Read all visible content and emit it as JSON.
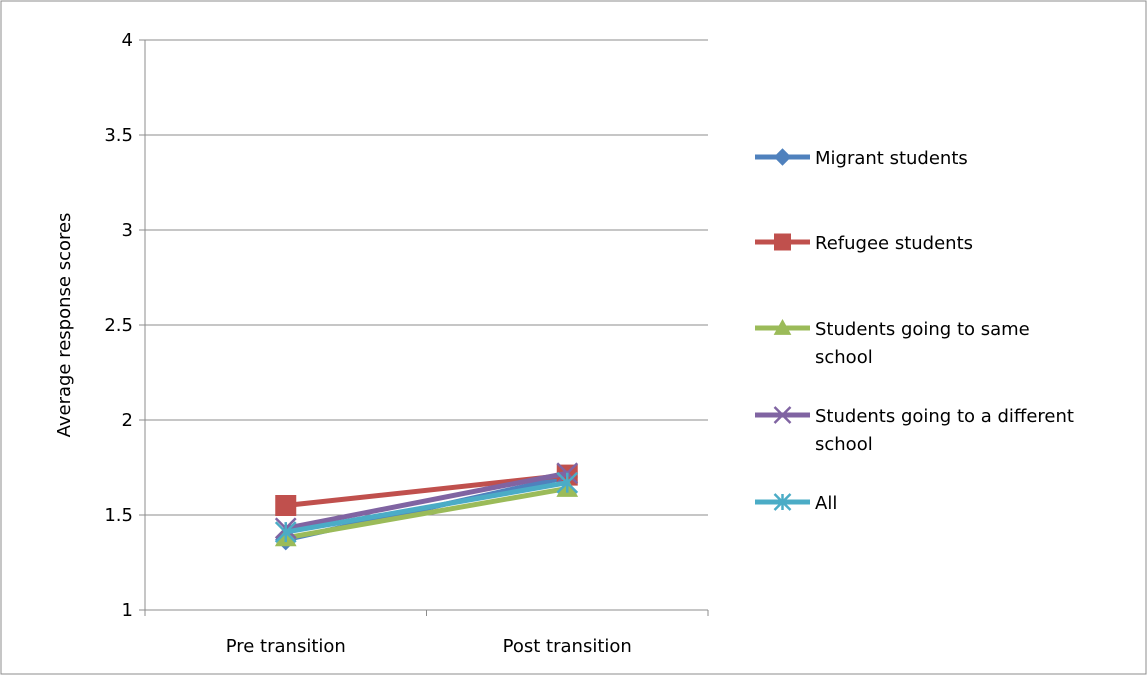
{
  "chart_data": {
    "type": "line",
    "title": "",
    "xlabel": "",
    "ylabel": "Average response scores",
    "categories": [
      "Pre transition",
      "Post transition"
    ],
    "ylim": [
      1,
      4
    ],
    "yticks": [
      "1",
      "1.5",
      "2",
      "2.5",
      "3",
      "3.5",
      "4"
    ],
    "grid": true,
    "legend_position": "right",
    "series": [
      {
        "name": "Migrant students",
        "values": [
          1.37,
          1.7
        ],
        "color": "#4f81bd",
        "marker": "diamond"
      },
      {
        "name": "Refugee students",
        "values": [
          1.55,
          1.71
        ],
        "color": "#c0504d",
        "marker": "square"
      },
      {
        "name": "Students going to same school",
        "values": [
          1.38,
          1.64
        ],
        "color": "#9bbb59",
        "marker": "triangle"
      },
      {
        "name": "Students going to a different school",
        "values": [
          1.43,
          1.72
        ],
        "color": "#8064a2",
        "marker": "x"
      },
      {
        "name": "All",
        "values": [
          1.41,
          1.67
        ],
        "color": "#4bacc6",
        "marker": "asterisk"
      }
    ]
  }
}
